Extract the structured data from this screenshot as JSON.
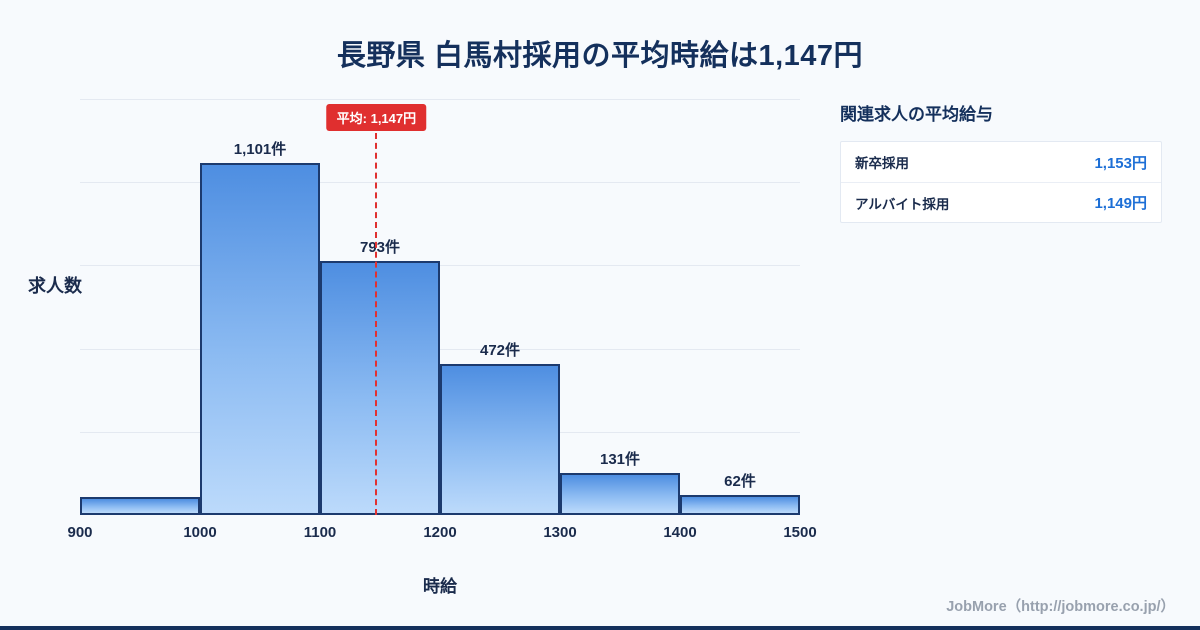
{
  "title": "長野県 白馬村採用の平均時給は1,147円",
  "chart_data": {
    "type": "bar",
    "title": "長野県 白馬村採用の平均時給は1,147円",
    "xlabel": "時給",
    "ylabel": "求人数",
    "bin_edges": [
      900,
      1000,
      1100,
      1200,
      1300,
      1400,
      1500
    ],
    "values": [
      55,
      1101,
      793,
      472,
      131,
      62
    ],
    "labels": [
      "",
      "1,101件",
      "793件",
      "472件",
      "131件",
      "62件"
    ],
    "mean": {
      "value": 1147,
      "label": "平均: 1,147円"
    },
    "xlim": [
      900,
      1500
    ],
    "ylim": [
      0,
      1300
    ],
    "grid": "horizontal",
    "legend": "none"
  },
  "side_panel": {
    "title": "関連求人の平均給与",
    "rows": [
      {
        "label": "新卒採用",
        "value": "1,153円"
      },
      {
        "label": "アルバイト採用",
        "value": "1,149円"
      }
    ]
  },
  "footer": {
    "credit": "JobMore（http://jobmore.co.jp/）"
  },
  "colors": {
    "background": "#f7fafd",
    "title": "#14305c",
    "bar_top": "#4e8ee1",
    "bar_bottom": "#bcdafb",
    "bar_border": "#1c3a6e",
    "mean_line": "#e03131",
    "value_blue": "#1d6fd6",
    "footer_gray": "#98a1ae"
  }
}
